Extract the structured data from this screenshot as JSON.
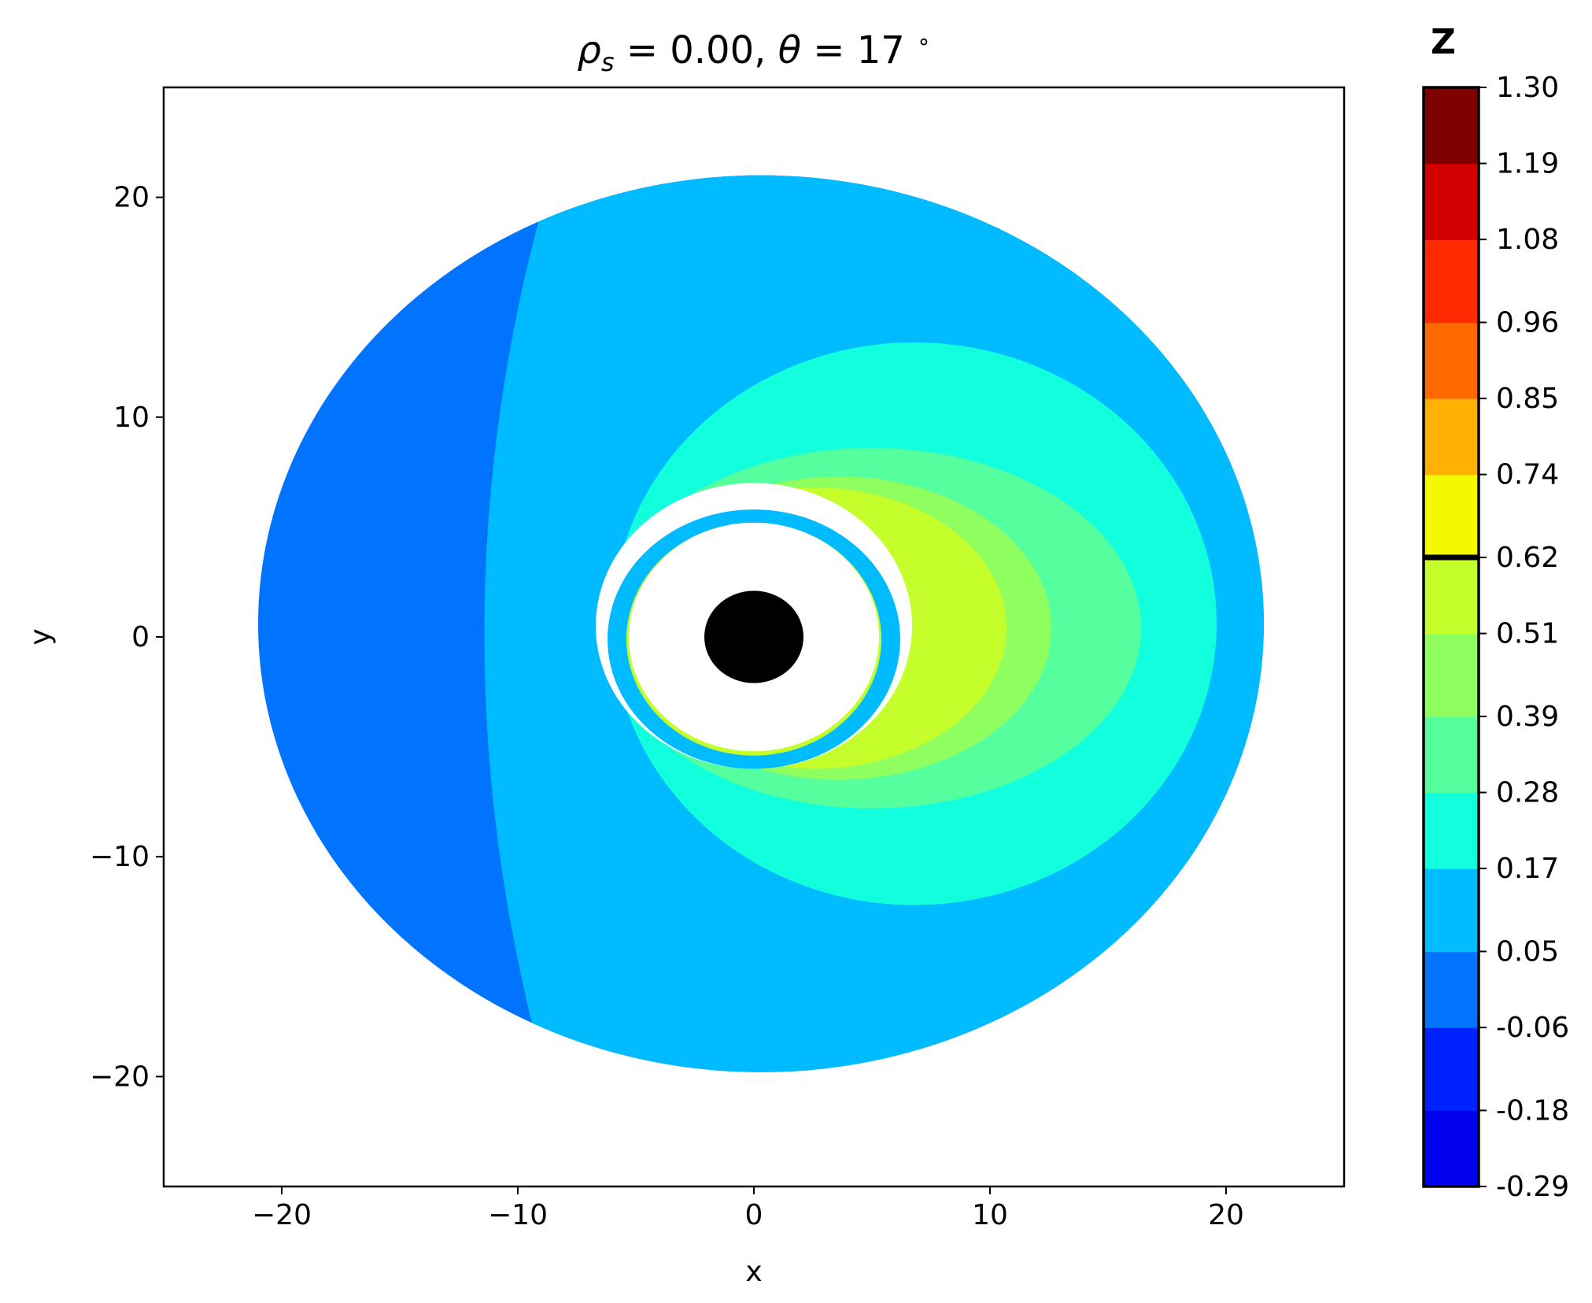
{
  "chart_data": {
    "type": "contour",
    "title": "ρs = 0.00,  θ = 17 °",
    "title_parts": {
      "rho": "ρ",
      "rho_sub": "s",
      "rho_eq": " = 0.00,  ",
      "theta": "θ",
      "theta_eq": " = 17 ",
      "degree": "∘"
    },
    "xlabel": "x",
    "ylabel": "y",
    "xlim": [
      -25,
      25
    ],
    "ylim": [
      -25,
      25
    ],
    "x_ticks": [
      -20,
      -10,
      0,
      10,
      20
    ],
    "y_ticks": [
      -20,
      -10,
      0,
      10,
      20
    ],
    "x_tick_labels": [
      "−20",
      "−10",
      "0",
      "10",
      "20"
    ],
    "y_tick_labels": [
      "−20",
      "−10",
      "0",
      "10",
      "20"
    ],
    "grid": false,
    "colorbar": {
      "label": "Z",
      "levels": [
        -0.29,
        -0.18,
        -0.06,
        0.05,
        0.17,
        0.28,
        0.39,
        0.51,
        0.62,
        0.74,
        0.85,
        0.96,
        1.08,
        1.19,
        1.3
      ],
      "tick_labels": [
        "-0.29",
        "-0.18",
        "-0.06",
        "0.05",
        "0.17",
        "0.28",
        "0.39",
        "0.51",
        "0.62",
        "0.74",
        "0.85",
        "0.96",
        "1.08",
        "1.19",
        "1.30"
      ],
      "band_colors": [
        "#0000ee",
        "#0022ff",
        "#0074ff",
        "#00bbff",
        "#12ffdd",
        "#55ff9e",
        "#8fff60",
        "#c4ff2c",
        "#f4f800",
        "#ffb000",
        "#ff6a00",
        "#ff2a00",
        "#d20000",
        "#7e0000"
      ],
      "marked_level": 0.62
    },
    "regions": [
      {
        "name": "outer-disk",
        "value_band": "-0.06 to 0.05",
        "color": "#0074ff",
        "center": [
          0.3,
          0.6
        ],
        "rx": 21.3,
        "ry": 20.4
      },
      {
        "name": "main-disk",
        "value_band": "0.05 to 0.17",
        "color": "#00bbff"
      },
      {
        "name": "inner-disk",
        "value_band": "0.17 to 0.28",
        "color": "#12ffdd",
        "center": [
          6.8,
          0.6
        ],
        "rx": 12.8,
        "ry": 12.8
      },
      {
        "name": "band-0.28",
        "value_band": "0.28 to 0.39",
        "color": "#55ff9e"
      },
      {
        "name": "band-0.39",
        "value_band": "0.39 to 0.51",
        "color": "#8fff60"
      },
      {
        "name": "band-0.51",
        "value_band": "0.51 to 0.62",
        "color": "#c4ff2c"
      },
      {
        "name": "inner-ring",
        "value_band": "0.05 to 0.17",
        "color": "#00bbff"
      },
      {
        "name": "black-hole-shadow",
        "color": "#000000",
        "center": [
          0,
          0
        ],
        "rx": 2.1,
        "ry": 2.1
      }
    ]
  }
}
